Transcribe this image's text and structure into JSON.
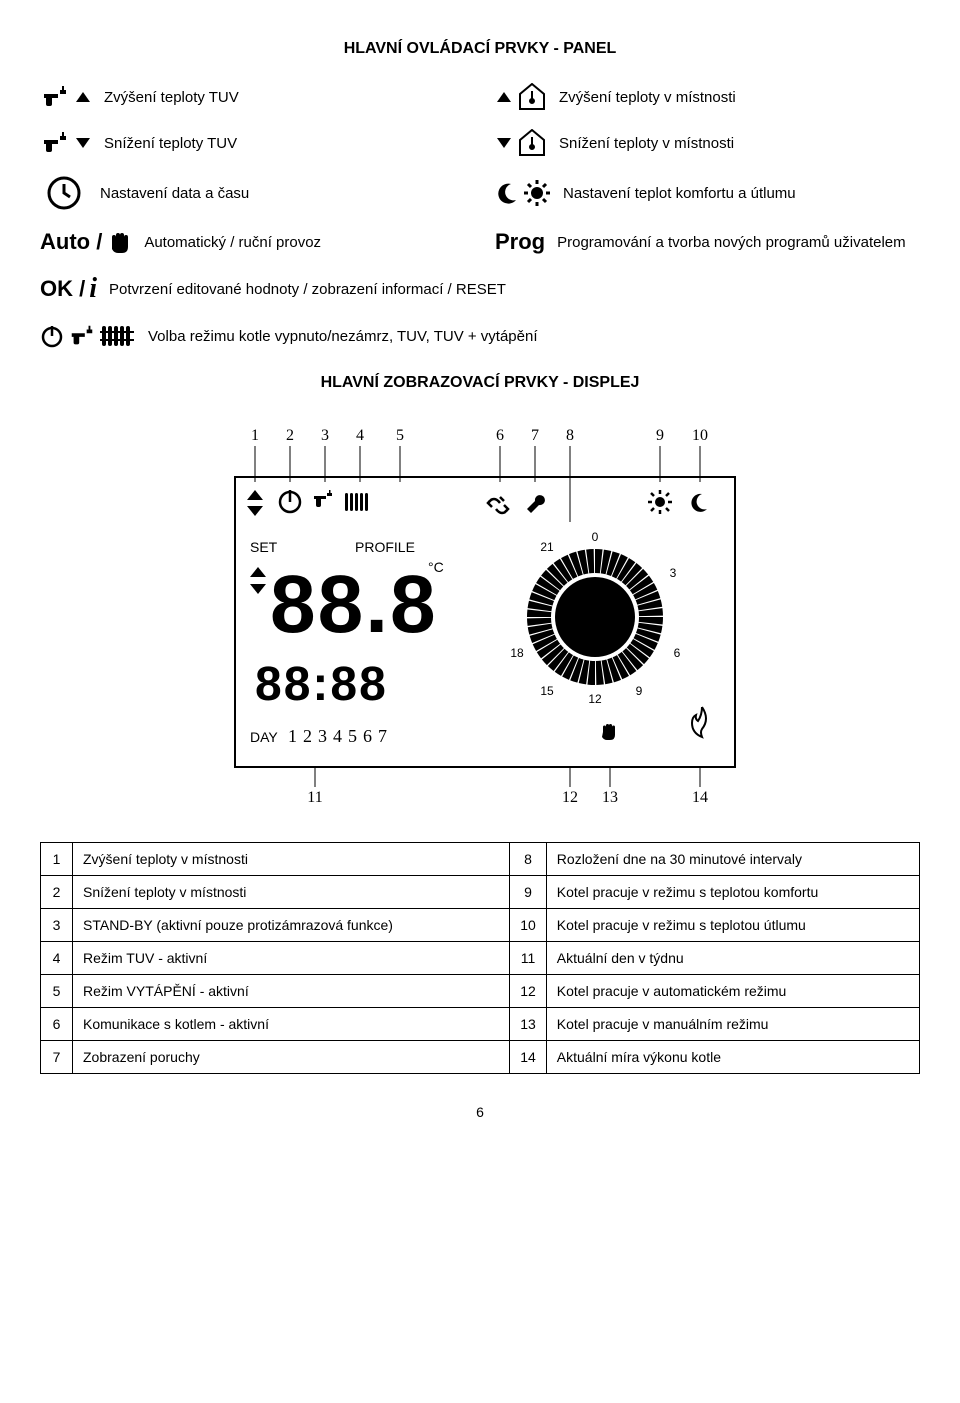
{
  "title_panel": "HLAVNÍ OVLÁDACÍ PRVKY - PANEL",
  "title_display": "HLAVNÍ ZOBRAZOVACÍ PRVKY - DISPLEJ",
  "panel": {
    "faucet_up": "Zvýšení teploty TUV",
    "faucet_down": "Snížení teploty TUV",
    "temp_up": "Zvýšení teploty v místnosti",
    "temp_down": "Snížení teploty v místnosti",
    "clock": "Nastavení data a času",
    "moon_sun": "Nastavení teplot komfortu a útlumu",
    "auto_label": "Auto /",
    "auto_desc": "Automatický / ruční provoz",
    "prog_label": "Prog",
    "prog_desc": "Programování a tvorba nových programů uživatelem",
    "ok_label": "OK /",
    "ok_desc": "Potvrzení editované hodnoty / zobrazení informací / RESET",
    "mode_desc": "Volba režimu kotle vypnuto/nezámrz, TUV, TUV + vytápění"
  },
  "display_labels": {
    "set": "SET",
    "profile": "PROFILE",
    "day": "DAY",
    "digits": "88.8",
    "bottom_digits": "88:88",
    "days": "1234567",
    "ring": {
      "t0": "0",
      "t3": "3",
      "t6": "6",
      "t9": "9",
      "t12": "12",
      "t15": "15",
      "t18": "18",
      "t21": "21"
    }
  },
  "indices": {
    "top": [
      "1",
      "2",
      "3",
      "4",
      "5",
      "6",
      "7",
      "8",
      "9",
      "10"
    ],
    "bottom": [
      "11",
      "12",
      "13",
      "14"
    ]
  },
  "legend": {
    "rows": [
      {
        "n1": "1",
        "t1": "Zvýšení teploty v místnosti",
        "n2": "8",
        "t2": "Rozložení dne na 30 minutové intervaly"
      },
      {
        "n1": "2",
        "t1": "Snížení teploty v místnosti",
        "n2": "9",
        "t2": "Kotel pracuje v režimu s teplotou komfortu"
      },
      {
        "n1": "3",
        "t1": "STAND-BY (aktivní pouze protizámrazová funkce)",
        "n2": "10",
        "t2": "Kotel pracuje v režimu s teplotou útlumu"
      },
      {
        "n1": "4",
        "t1": "Režim TUV - aktivní",
        "n2": "11",
        "t2": "Aktuální den v týdnu"
      },
      {
        "n1": "5",
        "t1": "Režim VYTÁPĚNÍ - aktivní",
        "n2": "12",
        "t2": "Kotel pracuje v automatickém režimu"
      },
      {
        "n1": "6",
        "t1": "Komunikace s kotlem - aktivní",
        "n2": "13",
        "t2": "Kotel pracuje v manuálním režimu"
      },
      {
        "n1": "7",
        "t1": "Zobrazení poruchy",
        "n2": "14",
        "t2": "Aktuální míra výkonu kotle"
      }
    ]
  },
  "page_number": "6",
  "colors": {
    "black": "#000000",
    "white": "#ffffff"
  },
  "fonts": {
    "title_size": 16,
    "label_size": 15,
    "table_size": 14
  }
}
